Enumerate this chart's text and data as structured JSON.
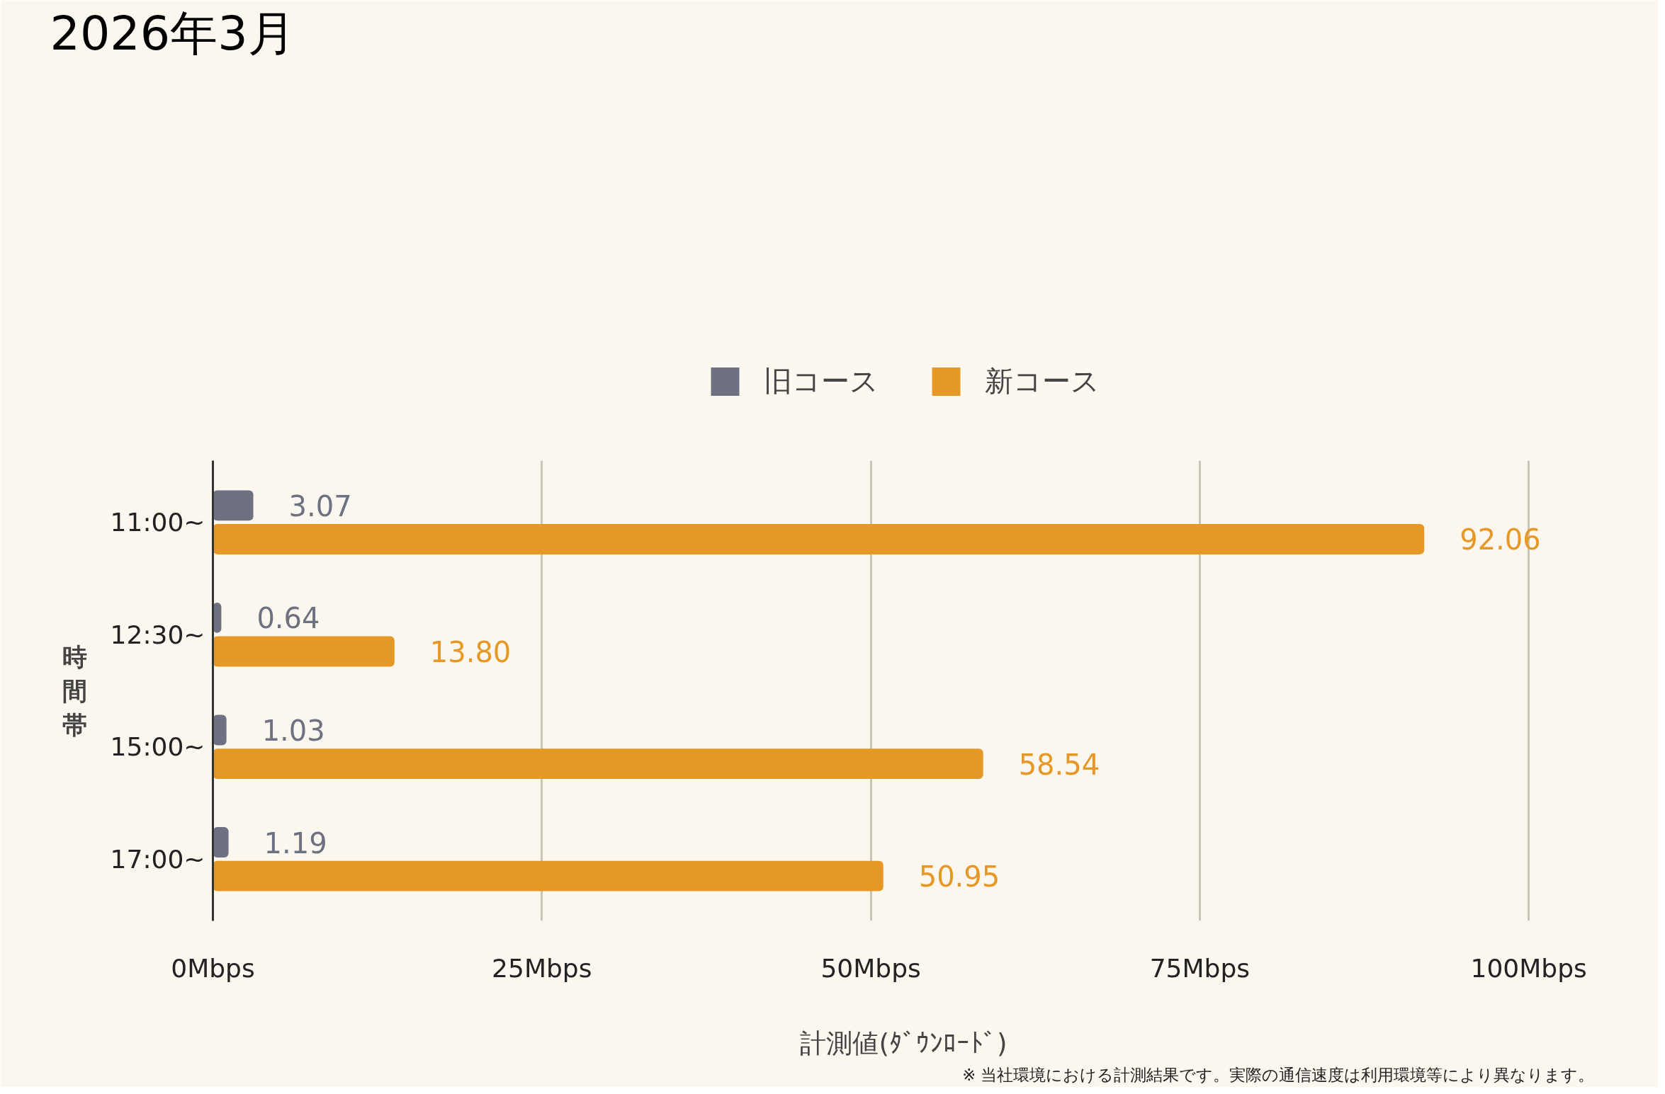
{
  "chart_data": {
    "type": "bar",
    "orientation": "horizontal",
    "title": "2026年3月",
    "xlabel": "計測値(ﾀﾞｳﾝﾛｰﾄﾞ)",
    "ylabel": "時間帯",
    "categories": [
      "11:00~",
      "12:30~",
      "15:00~",
      "17:00~"
    ],
    "series": [
      {
        "name": "旧コース",
        "color": "#6e7181",
        "values": [
          3.07,
          0.64,
          1.03,
          1.19
        ],
        "value_labels": [
          "3.07",
          "0.64",
          "1.03",
          "1.19"
        ]
      },
      {
        "name": "新コース",
        "color": "#e69826",
        "values": [
          92.06,
          13.8,
          58.54,
          50.95
        ],
        "value_labels": [
          "92.06",
          "13.80",
          "58.54",
          "50.95"
        ]
      }
    ],
    "xlim": [
      0,
      105
    ],
    "xticks": [
      {
        "value": 0,
        "label": "0Mbps"
      },
      {
        "value": 25,
        "label": "25Mbps"
      },
      {
        "value": 50,
        "label": "50Mbps"
      },
      {
        "value": 75,
        "label": "75Mbps"
      },
      {
        "value": 100,
        "label": "100Mbps"
      }
    ],
    "grid": "x",
    "legend": "top",
    "annotations": [
      "※ 当社環境における計測結果です。実際の通信速度は利用環境等により異なります。"
    ]
  }
}
